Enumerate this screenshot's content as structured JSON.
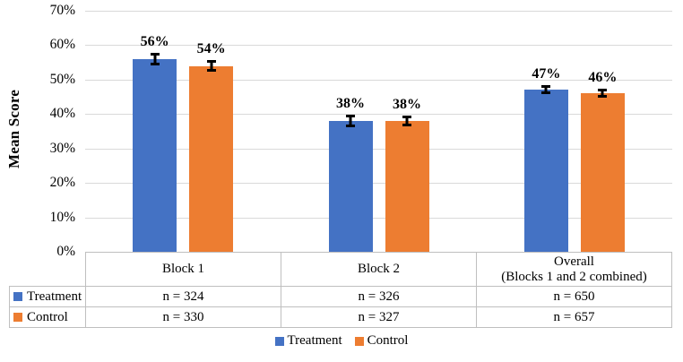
{
  "chart_data": {
    "type": "bar",
    "title": "",
    "ylabel": "Mean Score",
    "xlabel": "",
    "ylim": [
      0,
      70
    ],
    "ytick_step": 10,
    "ytick_labels": [
      "0%",
      "10%",
      "20%",
      "30%",
      "40%",
      "50%",
      "60%",
      "70%"
    ],
    "grid": true,
    "legend_position": "bottom",
    "categories": [
      "Block 1",
      "Block 2",
      "Overall\n(Blocks 1 and 2 combined)"
    ],
    "series": [
      {
        "name": "Treatment",
        "color": "#4472C4",
        "values": [
          56,
          38,
          47
        ],
        "errors": [
          1.8,
          1.8,
          1.3
        ],
        "data_labels": [
          "56%",
          "38%",
          "47%"
        ],
        "table_values": [
          "n = 324",
          "n = 326",
          "n = 650"
        ]
      },
      {
        "name": "Control",
        "color": "#ED7D31",
        "values": [
          54,
          38,
          46
        ],
        "errors": [
          1.6,
          1.6,
          1.3
        ],
        "data_labels": [
          "54%",
          "38%",
          "46%"
        ],
        "table_values": [
          "n = 330",
          "n = 327",
          "n = 657"
        ]
      }
    ],
    "colors": {
      "gridline": "#D9D9D9",
      "table_border": "#BFBFBF",
      "error_bar": "#000000",
      "text": "#000000",
      "background": "#FFFFFF"
    }
  }
}
